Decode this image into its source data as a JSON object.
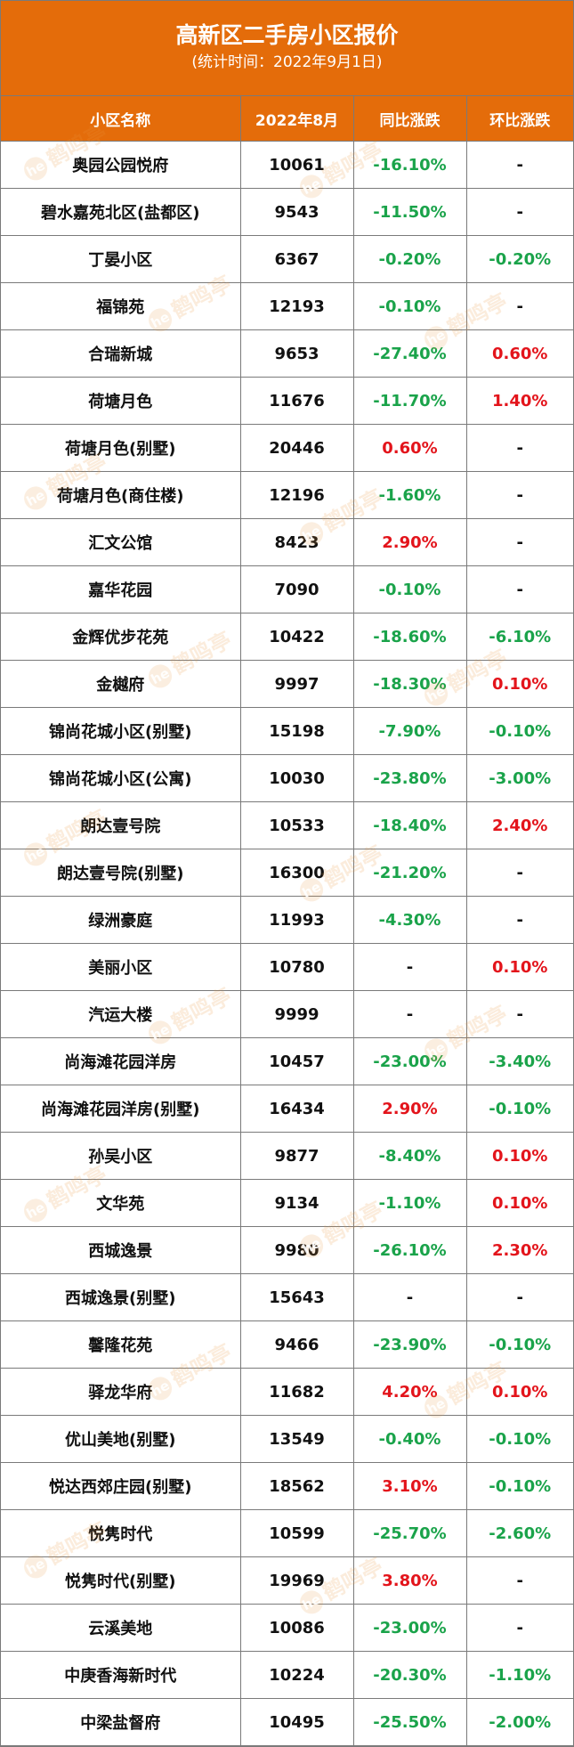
{
  "title": "高新区二手房小区报价",
  "subtitle": "(统计时间：2022年9月1日)",
  "columns": [
    "小区名称",
    "2022年8月",
    "同比涨跌",
    "环比涨跌"
  ],
  "watermark": {
    "badge": "he",
    "text": "鹤鸣亭"
  },
  "colors": {
    "header_bg": "#e46c0a",
    "rise": "#e3141b",
    "fall": "#1aa34a"
  },
  "rows": [
    [
      "奥园公园悦府",
      "10061",
      "-16.10%",
      "-"
    ],
    [
      "碧水嘉苑北区(盐都区)",
      "9543",
      "-11.50%",
      "-"
    ],
    [
      "丁晏小区",
      "6367",
      "-0.20%",
      "-0.20%"
    ],
    [
      "福锦苑",
      "12193",
      "-0.10%",
      "-"
    ],
    [
      "合瑞新城",
      "9653",
      "-27.40%",
      "0.60%"
    ],
    [
      "荷塘月色",
      "11676",
      "-11.70%",
      "1.40%"
    ],
    [
      "荷塘月色(别墅)",
      "20446",
      "0.60%",
      "-"
    ],
    [
      "荷塘月色(商住楼)",
      "12196",
      "-1.60%",
      "-"
    ],
    [
      "汇文公馆",
      "8423",
      "2.90%",
      "-"
    ],
    [
      "嘉华花园",
      "7090",
      "-0.10%",
      "-"
    ],
    [
      "金辉优步花苑",
      "10422",
      "-18.60%",
      "-6.10%"
    ],
    [
      "金樾府",
      "9997",
      "-18.30%",
      "0.10%"
    ],
    [
      "锦尚花城小区(别墅)",
      "15198",
      "-7.90%",
      "-0.10%"
    ],
    [
      "锦尚花城小区(公寓)",
      "10030",
      "-23.80%",
      "-3.00%"
    ],
    [
      "朗达壹号院",
      "10533",
      "-18.40%",
      "2.40%"
    ],
    [
      "朗达壹号院(别墅)",
      "16300",
      "-21.20%",
      "-"
    ],
    [
      "绿洲豪庭",
      "11993",
      "-4.30%",
      "-"
    ],
    [
      "美丽小区",
      "10780",
      "-",
      "0.10%"
    ],
    [
      "汽运大楼",
      "9999",
      "-",
      "-"
    ],
    [
      "尚海滩花园洋房",
      "10457",
      "-23.00%",
      "-3.40%"
    ],
    [
      "尚海滩花园洋房(别墅)",
      "16434",
      "2.90%",
      "-0.10%"
    ],
    [
      "孙吴小区",
      "9877",
      "-8.40%",
      "0.10%"
    ],
    [
      "文华苑",
      "9134",
      "-1.10%",
      "0.10%"
    ],
    [
      "西城逸景",
      "9980",
      "-26.10%",
      "2.30%"
    ],
    [
      "西城逸景(别墅)",
      "15643",
      "-",
      "-"
    ],
    [
      "馨隆花苑",
      "9466",
      "-23.90%",
      "-0.10%"
    ],
    [
      "驿龙华府",
      "11682",
      "4.20%",
      "0.10%"
    ],
    [
      "优山美地(别墅)",
      "13549",
      "-0.40%",
      "-0.10%"
    ],
    [
      "悦达西郊庄园(别墅)",
      "18562",
      "3.10%",
      "-0.10%"
    ],
    [
      "悦隽时代",
      "10599",
      "-25.70%",
      "-2.60%"
    ],
    [
      "悦隽时代(别墅)",
      "19969",
      "3.80%",
      "-"
    ],
    [
      "云溪美地",
      "10086",
      "-23.00%",
      "-"
    ],
    [
      "中庚香海新时代",
      "10224",
      "-20.30%",
      "-1.10%"
    ],
    [
      "中梁盐督府",
      "10495",
      "-25.50%",
      "-2.00%"
    ]
  ]
}
